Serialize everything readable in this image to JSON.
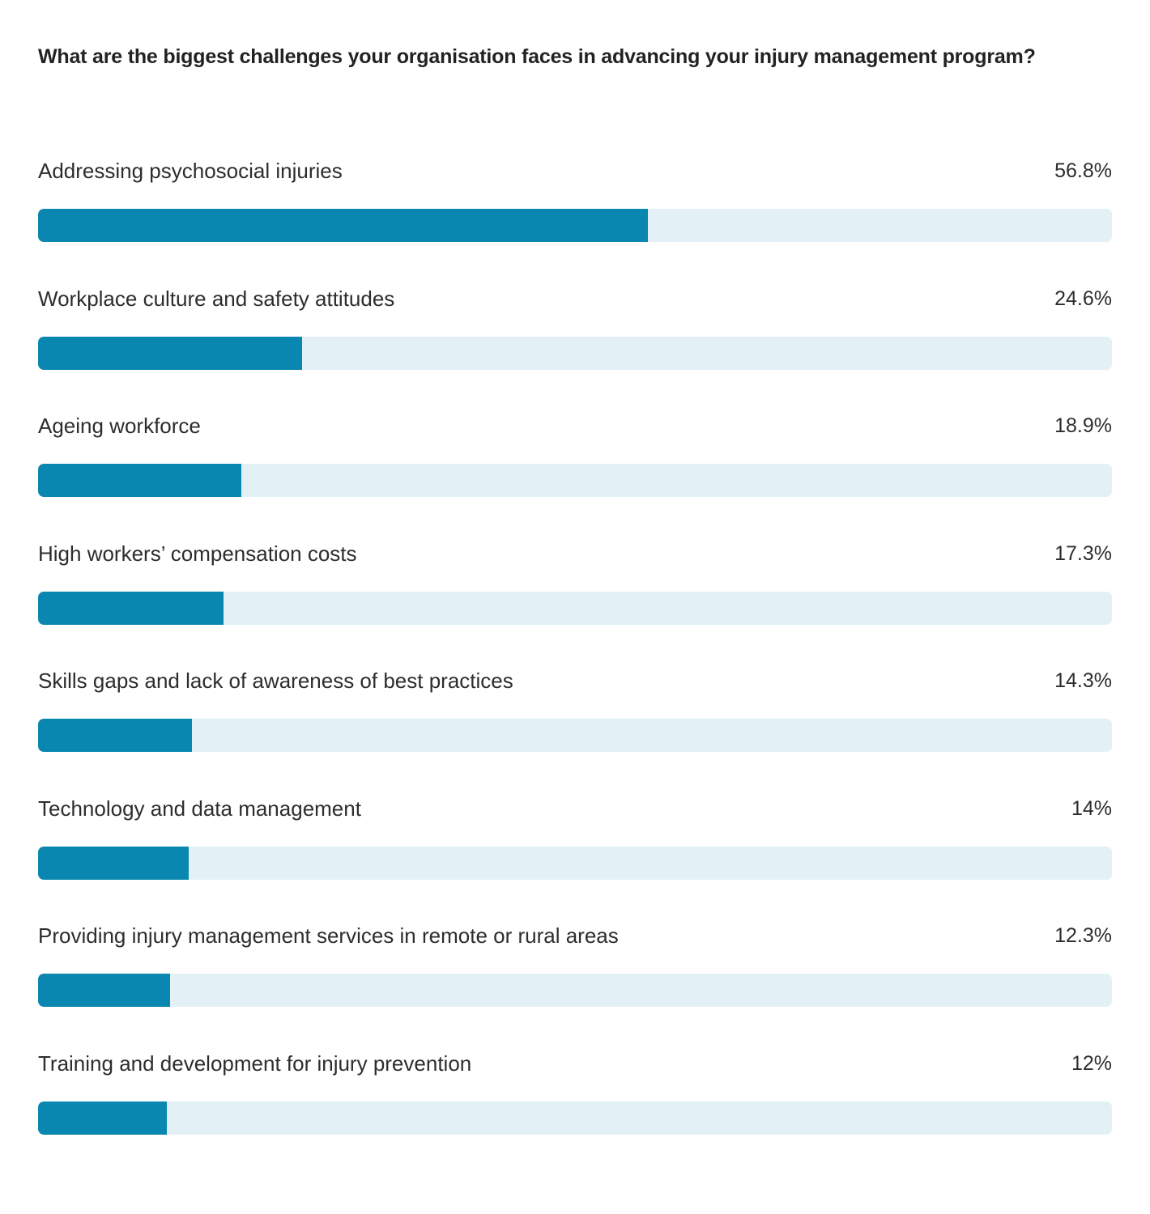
{
  "chart_data": {
    "type": "bar",
    "title": "What are the biggest challenges your organisation faces in advancing your injury management program?",
    "orientation": "horizontal",
    "xlim": [
      0,
      100
    ],
    "colors": {
      "fill": "#0a87b0",
      "track": "#e3f1f7"
    },
    "categories": [
      "Addressing psychosocial injuries",
      "Workplace culture and safety attitudes",
      "Ageing workforce",
      "High workers’ compensation costs",
      "Skills gaps and lack of awareness of best practices",
      "Technology and data management",
      "Providing injury management services in remote or rural areas",
      "Training and development for injury prevention"
    ],
    "values": [
      56.8,
      24.6,
      18.9,
      17.3,
      14.3,
      14,
      12.3,
      12
    ],
    "value_labels": [
      "56.8%",
      "24.6%",
      "18.9%",
      "17.3%",
      "14.3%",
      "14%",
      "12.3%",
      "12%"
    ]
  }
}
